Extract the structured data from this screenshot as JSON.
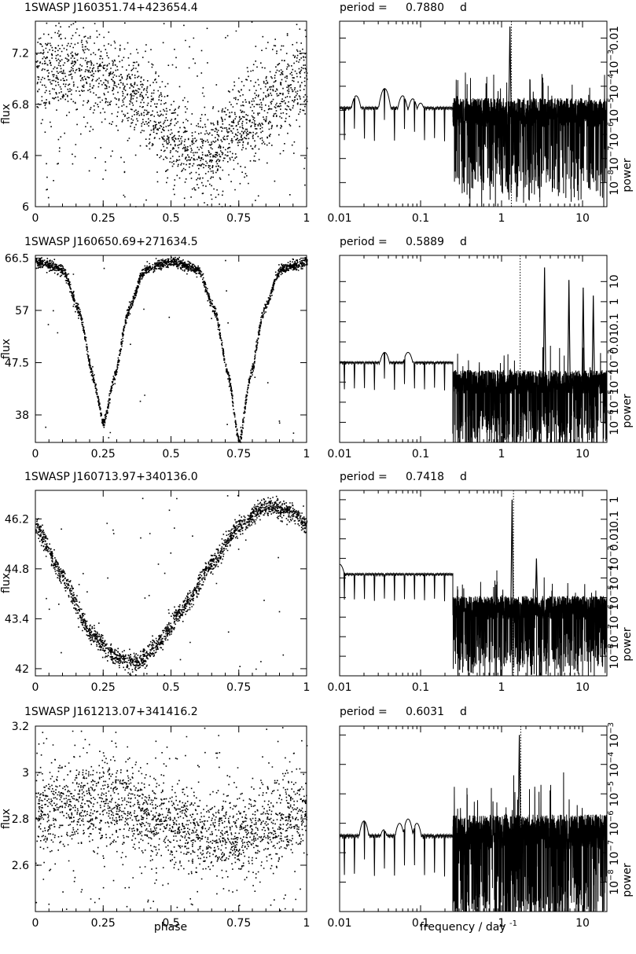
{
  "figure": {
    "xlabel_left": "phase",
    "xlabel_right_main": "frequency / day",
    "xlabel_right_sup": "-1",
    "ylabel_left": "flux",
    "ylabel_right": "power",
    "period_prefix": "period ="
  },
  "chart_data": [
    {
      "panel": 1,
      "left": {
        "type": "scatter",
        "title": "1SWASP J160351.74+423654.4",
        "xlabel": "",
        "ylabel": "flux",
        "xlim": [
          0,
          1
        ],
        "ylim": [
          6.0,
          7.45
        ],
        "xticks": [
          "0",
          "0.25",
          "0.5",
          "0.75",
          "1"
        ],
        "yticks": [
          "6",
          "6.4",
          "6.8",
          "7.2"
        ],
        "shape_points": [
          [
            0,
            7.05
          ],
          [
            0.1,
            7.1
          ],
          [
            0.25,
            7.02
          ],
          [
            0.4,
            6.8
          ],
          [
            0.55,
            6.45
          ],
          [
            0.62,
            6.4
          ],
          [
            0.75,
            6.6
          ],
          [
            0.9,
            6.9
          ],
          [
            1,
            7.0
          ]
        ],
        "scatter": 0.17,
        "n_points": 2000,
        "outlier_fraction": 0.12
      },
      "right": {
        "type": "line",
        "period_value": "0.7880",
        "period_unit": "d",
        "xscale": "log",
        "yscale": "log",
        "xlim": [
          0.01,
          20
        ],
        "xticks": [
          "0.01",
          "0.1",
          "1",
          "10"
        ],
        "ylim": [
          1e-09,
          0.05
        ],
        "yticks": [
          "10^-8",
          "10^-7",
          "10^-6",
          "10^-5",
          "10^-4",
          "10^-3",
          "0.01"
        ],
        "peak_frequency": 1.269,
        "peak_power": 0.03,
        "noise_level": 8e-06,
        "low_freq_peaks": [
          [
            0.016,
            4e-05
          ],
          [
            0.036,
            8e-05
          ],
          [
            0.06,
            4e-05
          ],
          [
            0.08,
            3e-05
          ],
          [
            0.1,
            2e-05
          ]
        ]
      }
    },
    {
      "panel": 2,
      "left": {
        "type": "scatter",
        "title": "1SWASP J160650.69+271634.5",
        "xlabel": "",
        "ylabel": "flux",
        "xlim": [
          0,
          1
        ],
        "ylim": [
          33.0,
          67.0
        ],
        "xticks": [
          "0",
          "0.25",
          "0.5",
          "0.75",
          "1"
        ],
        "yticks": [
          "38",
          "47.5",
          "57",
          "66.5"
        ],
        "shape_points": [
          [
            0,
            66
          ],
          [
            0.1,
            64.5
          ],
          [
            0.16,
            57
          ],
          [
            0.21,
            45
          ],
          [
            0.25,
            36.5
          ],
          [
            0.29,
            45
          ],
          [
            0.34,
            57
          ],
          [
            0.4,
            64.5
          ],
          [
            0.5,
            66
          ],
          [
            0.6,
            64.5
          ],
          [
            0.66,
            57
          ],
          [
            0.71,
            45
          ],
          [
            0.75,
            33
          ],
          [
            0.79,
            45
          ],
          [
            0.84,
            57
          ],
          [
            0.9,
            64.5
          ],
          [
            1,
            66
          ]
        ],
        "scatter": 0.45,
        "n_points": 2200,
        "outlier_fraction": 0.015
      },
      "right": {
        "type": "line",
        "period_value": "0.5889",
        "period_unit": "d",
        "xscale": "log",
        "yscale": "log",
        "xlim": [
          0.01,
          20
        ],
        "xticks": [
          "0.01",
          "0.1",
          "1",
          "10"
        ],
        "ylim": [
          1e-07,
          200
        ],
        "yticks": [
          "10^-6",
          "10^-5",
          "10^-4",
          "10^-3",
          "0.01",
          "0.1",
          "1",
          "10"
        ],
        "marker_frequency": 1.698,
        "harmonic_peaks": [
          [
            3.396,
            50
          ],
          [
            6.792,
            12
          ],
          [
            10.19,
            5
          ],
          [
            13.58,
            2
          ]
        ],
        "noise_level": 0.0001,
        "low_freq_peaks": [
          [
            0.036,
            0.003
          ],
          [
            0.07,
            0.003
          ],
          [
            0.1,
            0.0007
          ]
        ]
      }
    },
    {
      "panel": 3,
      "left": {
        "type": "scatter",
        "title": "1SWASP J160713.97+340136.0",
        "xlabel": "",
        "ylabel": "flux",
        "xlim": [
          0,
          1
        ],
        "ylim": [
          41.8,
          47.0
        ],
        "xticks": [
          "0",
          "0.25",
          "0.5",
          "0.75",
          "1"
        ],
        "yticks": [
          "42",
          "43.4",
          "44.8",
          "46.2"
        ],
        "shape_points": [
          [
            0,
            46.0
          ],
          [
            0.1,
            44.6
          ],
          [
            0.2,
            43.0
          ],
          [
            0.3,
            42.3
          ],
          [
            0.37,
            42.15
          ],
          [
            0.45,
            42.7
          ],
          [
            0.55,
            43.8
          ],
          [
            0.65,
            45.0
          ],
          [
            0.75,
            46.0
          ],
          [
            0.85,
            46.6
          ],
          [
            0.95,
            46.4
          ],
          [
            1,
            46.0
          ]
        ],
        "scatter": 0.13,
        "n_points": 2000,
        "outlier_fraction": 0.03
      },
      "right": {
        "type": "line",
        "period_value": "0.7418",
        "period_unit": "d",
        "xscale": "log",
        "yscale": "log",
        "xlim": [
          0.01,
          20
        ],
        "xticks": [
          "0.01",
          "0.1",
          "1",
          "10"
        ],
        "ylim": [
          1e-09,
          3
        ],
        "yticks": [
          "10^-8",
          "10^-7",
          "10^-6",
          "10^-5",
          "10^-4",
          "10^-3",
          "0.01",
          "0.1",
          "1"
        ],
        "peak_frequency": 1.348,
        "peak_power": 1,
        "harmonic_peaks": [
          [
            2.696,
            0.001
          ]
        ],
        "noise_level": 3e-06,
        "low_freq_peaks": [
          [
            0.01,
            0.0005
          ],
          [
            0.045,
            0.0001
          ],
          [
            0.06,
            6e-05
          ],
          [
            0.08,
            4e-05
          ]
        ]
      }
    },
    {
      "panel": 4,
      "left": {
        "type": "scatter",
        "title": "1SWASP J161213.07+341416.2",
        "xlabel": "phase",
        "ylabel": "flux",
        "xlim": [
          0,
          1
        ],
        "ylim": [
          2.4,
          3.2
        ],
        "xticks": [
          "0",
          "0.25",
          "0.5",
          "0.75",
          "1"
        ],
        "yticks": [
          "2.6",
          "2.8",
          "3",
          "3.2"
        ],
        "shape_points": [
          [
            0,
            2.83
          ],
          [
            0.15,
            2.87
          ],
          [
            0.3,
            2.87
          ],
          [
            0.45,
            2.8
          ],
          [
            0.6,
            2.74
          ],
          [
            0.7,
            2.72
          ],
          [
            0.85,
            2.77
          ],
          [
            1,
            2.82
          ]
        ],
        "scatter": 0.09,
        "n_points": 2200,
        "outlier_fraction": 0.1
      },
      "right": {
        "type": "line",
        "period_value": "0.6031",
        "period_unit": "d",
        "xlabel": "frequency / day^-1",
        "ylabel": "power",
        "xscale": "log",
        "yscale": "log",
        "xlim": [
          0.01,
          20
        ],
        "xticks": [
          "0.01",
          "0.1",
          "1",
          "10"
        ],
        "ylim": [
          1e-09,
          0.002
        ],
        "yticks": [
          "10^-8",
          "10^-7",
          "10^-6",
          "10^-5",
          "10^-4",
          "10^-3"
        ],
        "peak_frequency": 1.658,
        "peak_power": 0.001,
        "noise_level": 5e-07,
        "low_freq_peaks": [
          [
            0.02,
            1.2e-06
          ],
          [
            0.035,
            6e-07
          ],
          [
            0.055,
            1e-06
          ],
          [
            0.07,
            1.4e-06
          ],
          [
            0.09,
            1e-06
          ]
        ]
      }
    }
  ]
}
